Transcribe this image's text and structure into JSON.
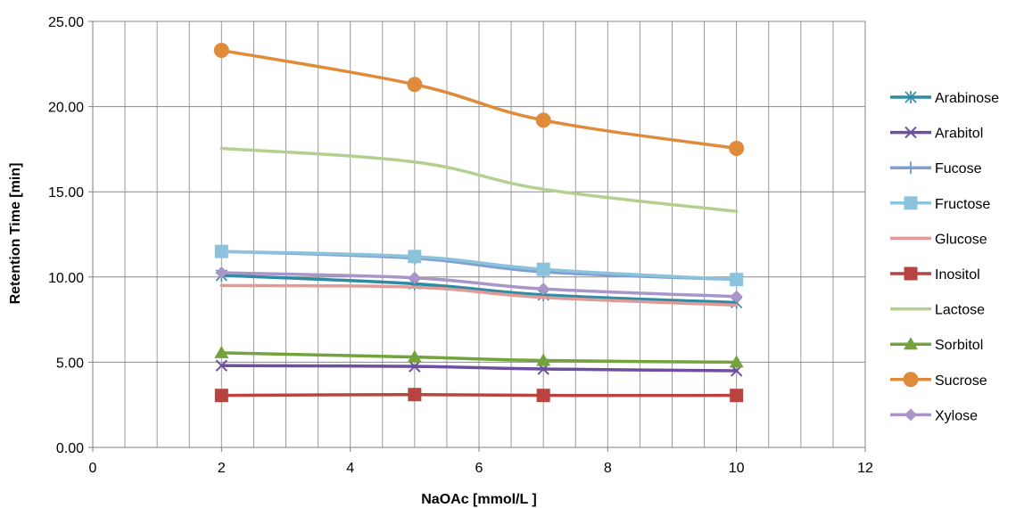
{
  "chart_data": {
    "type": "line",
    "title": "",
    "xlabel": "NaOAc [mmol/L ]",
    "ylabel": "Retention Time [min]",
    "xlim": [
      0,
      12
    ],
    "ylim": [
      0,
      25
    ],
    "x_ticks": [
      "0",
      "2",
      "4",
      "6",
      "8",
      "10",
      "12"
    ],
    "y_ticks": [
      "0.00",
      "5.00",
      "10.00",
      "15.00",
      "20.00",
      "25.00"
    ],
    "grid": true,
    "legend_position": "right",
    "x": [
      2,
      5,
      7,
      10
    ],
    "series": [
      {
        "name": "Arabinose",
        "values": [
          10.1,
          9.6,
          8.95,
          8.5
        ],
        "color": "#2e8ba3",
        "marker": "asterisk"
      },
      {
        "name": "Arabitol",
        "values": [
          4.8,
          4.75,
          4.6,
          4.5
        ],
        "color": "#6e4e9e",
        "marker": "x"
      },
      {
        "name": "Fucose",
        "values": [
          11.5,
          11.1,
          10.3,
          9.85
        ],
        "color": "#7f9fd3",
        "marker": "plus"
      },
      {
        "name": "Fructose",
        "values": [
          11.5,
          11.2,
          10.45,
          9.85
        ],
        "color": "#8cc3dc",
        "marker": "square"
      },
      {
        "name": "Glucose",
        "values": [
          9.5,
          9.4,
          8.8,
          8.35
        ],
        "color": "#e09b98",
        "marker": "none"
      },
      {
        "name": "Inositol",
        "values": [
          3.05,
          3.1,
          3.05,
          3.05
        ],
        "color": "#b8443f",
        "marker": "square"
      },
      {
        "name": "Lactose",
        "values": [
          17.55,
          16.75,
          15.15,
          13.85
        ],
        "color": "#b4d08f",
        "marker": "none"
      },
      {
        "name": "Sorbitol",
        "values": [
          5.55,
          5.3,
          5.1,
          5.0
        ],
        "color": "#72a33c",
        "marker": "triangle"
      },
      {
        "name": "Sucrose",
        "values": [
          23.3,
          21.3,
          19.2,
          17.55
        ],
        "color": "#e08b3a",
        "marker": "circle"
      },
      {
        "name": "Xylose",
        "values": [
          10.25,
          9.95,
          9.3,
          8.85
        ],
        "color": "#a996c9",
        "marker": "diamond"
      }
    ]
  }
}
